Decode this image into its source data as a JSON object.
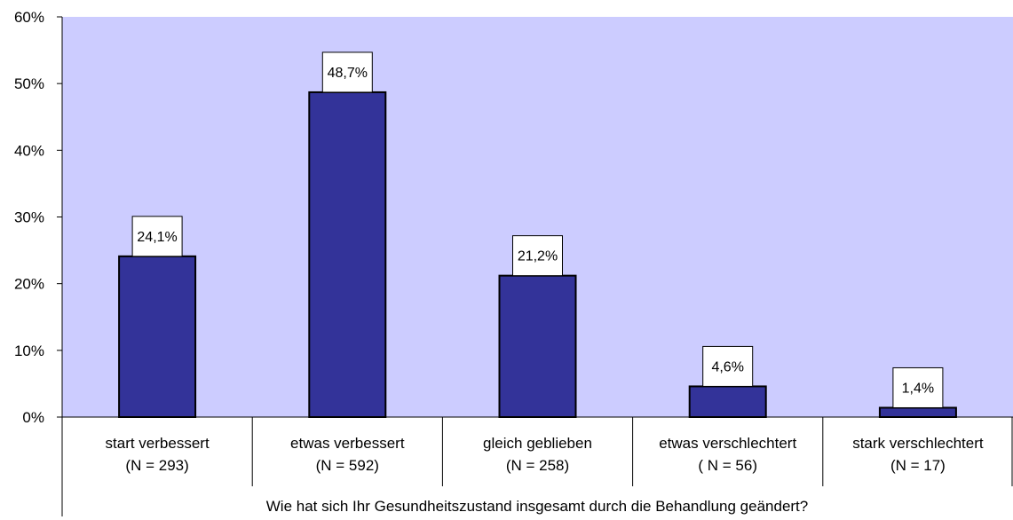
{
  "chart_data": {
    "type": "bar",
    "xlabel": "Wie hat sich Ihr Gesundheitszustand insgesamt durch die Behandlung geändert?",
    "ylabel": "",
    "ylim": [
      0,
      60
    ],
    "yticks": [
      "0%",
      "10%",
      "20%",
      "30%",
      "40%",
      "50%",
      "60%"
    ],
    "grid": false,
    "categories": [
      {
        "line1": "start verbessert",
        "line2": "(N = 293)"
      },
      {
        "line1": "etwas verbessert",
        "line2": "(N = 592)"
      },
      {
        "line1": "gleich geblieben",
        "line2": "(N = 258)"
      },
      {
        "line1": "etwas verschlechtert",
        "line2": "( N = 56)"
      },
      {
        "line1": "stark verschlechtert",
        "line2": "(N = 17)"
      }
    ],
    "values": [
      24.1,
      48.7,
      21.2,
      4.6,
      1.4
    ],
    "data_labels": [
      "24,1%",
      "48,7%",
      "21,2%",
      "4,6%",
      "1,4%"
    ],
    "colors": {
      "plot_background": "#ccccff",
      "bar_fill": "#333399",
      "bar_stroke": "#000000"
    }
  }
}
